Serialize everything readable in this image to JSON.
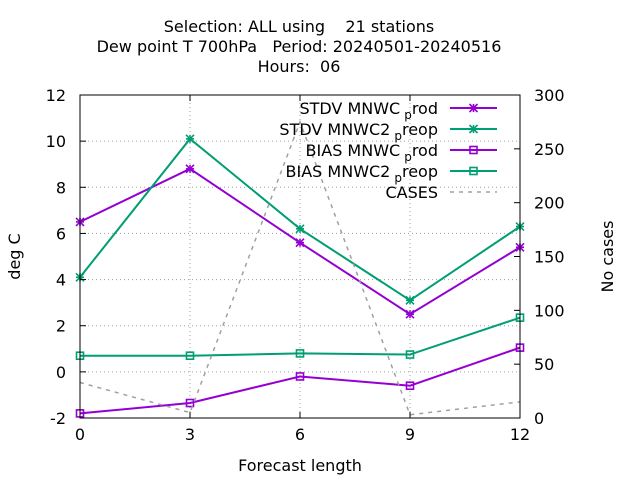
{
  "chart_data": {
    "type": "line",
    "title_lines": [
      "Selection: ALL using    21 stations",
      "Dew point T 700hPa   Period: 20240501-20240516",
      "Hours:  06"
    ],
    "xlabel": "Forecast length",
    "ylabel": "deg C",
    "y2label": "No cases",
    "x": [
      0,
      3,
      6,
      9,
      12
    ],
    "xlim": [
      0,
      12
    ],
    "ylim": [
      -2,
      12
    ],
    "y2lim": [
      0,
      300
    ],
    "xticks": [
      "0",
      "3",
      "6",
      "9",
      "12"
    ],
    "yticks": [
      "-2",
      "0",
      "2",
      "4",
      "6",
      "8",
      "10",
      "12"
    ],
    "y2ticks": [
      "0",
      "50",
      "100",
      "150",
      "200",
      "250",
      "300"
    ],
    "grid": true,
    "legend_position": "top-right",
    "series": [
      {
        "name": "STDV MNWC_prod",
        "legend_main": "STDV MNWC",
        "legend_sub": "p",
        "legend_rest": "rod",
        "axis": "y",
        "color": "#9400d3",
        "marker": "star",
        "dash": false,
        "values": [
          6.5,
          8.8,
          5.6,
          2.5,
          5.4
        ]
      },
      {
        "name": "STDV MNWC2_preop",
        "legend_main": "STDV MNWC2",
        "legend_sub": "p",
        "legend_rest": "reop",
        "axis": "y",
        "color": "#009e73",
        "marker": "star",
        "dash": false,
        "values": [
          4.1,
          10.1,
          6.2,
          3.1,
          6.3
        ]
      },
      {
        "name": "BIAS MNWC_prod",
        "legend_main": "BIAS MNWC",
        "legend_sub": "p",
        "legend_rest": "rod",
        "axis": "y",
        "color": "#9400d3",
        "marker": "square",
        "dash": false,
        "values": [
          -1.8,
          -1.35,
          -0.2,
          -0.6,
          1.05
        ]
      },
      {
        "name": "BIAS MNWC2_preop",
        "legend_main": "BIAS MNWC2",
        "legend_sub": "p",
        "legend_rest": "reop",
        "axis": "y",
        "color": "#009e73",
        "marker": "square",
        "dash": false,
        "values": [
          0.7,
          0.7,
          0.8,
          0.75,
          2.35
        ]
      },
      {
        "name": "CASES",
        "legend_main": "CASES",
        "legend_sub": "",
        "legend_rest": "",
        "axis": "y2",
        "color": "#a0a0a0",
        "marker": "none",
        "dash": true,
        "values": [
          33,
          5,
          275,
          3,
          15
        ]
      }
    ]
  }
}
